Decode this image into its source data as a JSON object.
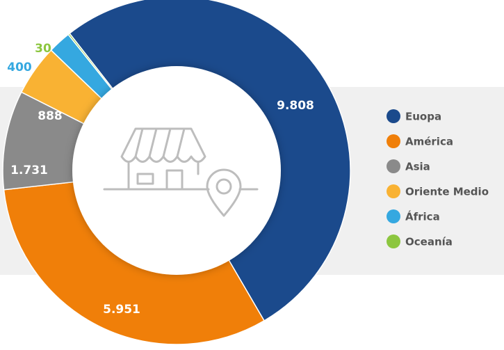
{
  "chart_data": {
    "type": "donut",
    "categories": [
      "Euopa",
      "América",
      "Asia",
      "Oriente Medio",
      "África",
      "Oceanía"
    ],
    "values": [
      9808,
      5951,
      1731,
      888,
      400,
      30
    ],
    "value_labels": [
      "9.808",
      "5.951",
      "1.731",
      "888",
      "400",
      "30"
    ],
    "colors": [
      "#1b4a8c",
      "#f07f09",
      "#8a8a8a",
      "#f9b233",
      "#35a8e0",
      "#8cc63f"
    ],
    "legend": "right"
  }
}
